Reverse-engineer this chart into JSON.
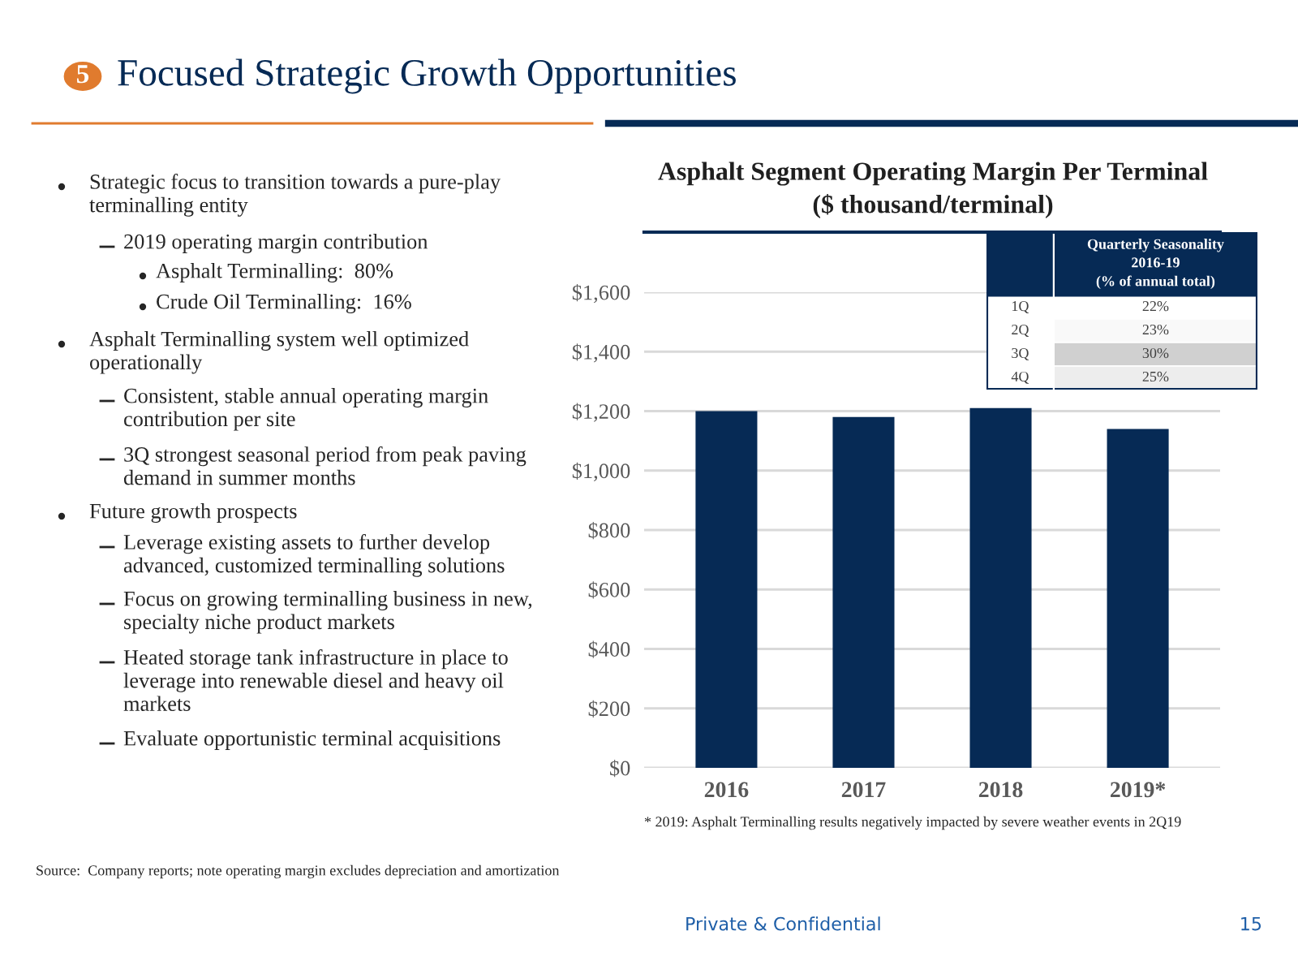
{
  "chart_data": [
    {
      "type": "bar",
      "title": "Asphalt Segment Operating Margin Per Terminal",
      "subtitle": "($ thousand/terminal)",
      "categories": [
        "2016",
        "2017",
        "2018",
        "2019*"
      ],
      "values": [
        1200,
        1180,
        1210,
        1140
      ],
      "color": "#062a55",
      "ylim": [
        0,
        1600
      ],
      "yticks": [
        {
          "value": 0,
          "label": "$0"
        },
        {
          "value": 200,
          "label": "$200"
        },
        {
          "value": 400,
          "label": "$400"
        },
        {
          "value": 600,
          "label": "$600"
        },
        {
          "value": 800,
          "label": "$800"
        },
        {
          "value": 1000,
          "label": "$1,000"
        },
        {
          "value": 1200,
          "label": "$1,200"
        },
        {
          "value": 1400,
          "label": "$1,400"
        },
        {
          "value": 1600,
          "label": "$1,600"
        }
      ],
      "grid": "y",
      "annotations": [
        "Focused Strategic Growth Opportunities",
        "5",
        "Strategic focus to transition towards a pure-play\nterminalling entity",
        "2019 operating margin contribution",
        "Asphalt Terminalling:  80%",
        "Crude Oil Terminalling:  16%",
        "Asphalt Terminalling system well optimized\noperationally",
        "Consistent, stable annual operating margin\ncontribution per site",
        "3Q strongest seasonal period from peak paving\ndemand in summer months",
        "Future growth prospects",
        "Leverage existing assets to further develop\nadvanced, customized terminalling solutions",
        "Focus on growing terminalling business in new,\nspecialty niche product markets",
        "Heated storage tank infrastructure in place to\nleverage into renewable diesel and heavy oil\nmarkets",
        "Evaluate opportunistic terminal acquisitions",
        "* 2019: Asphalt Terminalling results negatively impacted by severe weather events in 2Q19",
        "Source:  Company reports; note operating margin excludes depreciation and amortization",
        "Private & Confidential",
        "15"
      ]
    },
    {
      "type": "heatmap",
      "title": "Quarterly Seasonality\n2016-19\n(% of annual total)",
      "categories": [
        null
      ],
      "y_categories": [
        "1Q",
        "2Q",
        "3Q",
        "4Q"
      ],
      "cells": [
        [
          22
        ],
        [
          23
        ],
        [
          30
        ],
        [
          25
        ]
      ],
      "cell_labels": [
        [
          "22%"
        ],
        [
          "23%"
        ],
        [
          "30%"
        ],
        [
          "25%"
        ]
      ]
    }
  ]
}
